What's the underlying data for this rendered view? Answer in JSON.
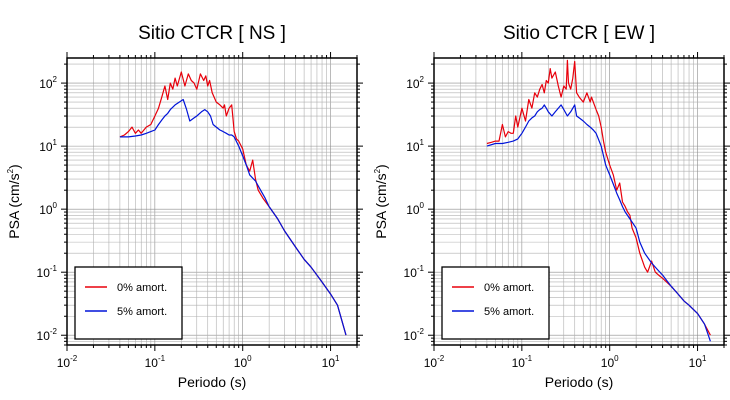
{
  "chart_data": [
    {
      "type": "line",
      "title": "Sitio CTCR [ NS ]",
      "xlabel": "Periodo (s)",
      "ylabel_main": "PSA (cm/s",
      "ylabel_sup": "2",
      "ylabel_close": ")",
      "xscale": "log",
      "yscale": "log",
      "xlim": [
        0.01,
        20
      ],
      "ylim": [
        0.007,
        250
      ],
      "grid": true,
      "legend_position": "bottom-left",
      "x_tick_labels": [
        {
          "base": "10",
          "exp": "-2",
          "value": 0.01
        },
        {
          "base": "10",
          "exp": "-1",
          "value": 0.1
        },
        {
          "base": "10",
          "exp": "0",
          "value": 1
        },
        {
          "base": "10",
          "exp": "1",
          "value": 10
        }
      ],
      "y_tick_labels": [
        {
          "base": "10",
          "exp": "-2",
          "value": 0.01
        },
        {
          "base": "10",
          "exp": "-1",
          "value": 0.1
        },
        {
          "base": "10",
          "exp": "0",
          "value": 1
        },
        {
          "base": "10",
          "exp": "1",
          "value": 10
        },
        {
          "base": "10",
          "exp": "2",
          "value": 100
        }
      ],
      "series": [
        {
          "name": "0% amort.",
          "color": "#e8000b",
          "points": [
            [
              0.04,
              14
            ],
            [
              0.045,
              15
            ],
            [
              0.05,
              17
            ],
            [
              0.055,
              20
            ],
            [
              0.06,
              16
            ],
            [
              0.065,
              18
            ],
            [
              0.07,
              16
            ],
            [
              0.075,
              18
            ],
            [
              0.08,
              20
            ],
            [
              0.09,
              22
            ],
            [
              0.1,
              30
            ],
            [
              0.11,
              40
            ],
            [
              0.12,
              60
            ],
            [
              0.13,
              90
            ],
            [
              0.14,
              55
            ],
            [
              0.15,
              100
            ],
            [
              0.16,
              80
            ],
            [
              0.17,
              120
            ],
            [
              0.18,
              90
            ],
            [
              0.2,
              150
            ],
            [
              0.22,
              90
            ],
            [
              0.24,
              140
            ],
            [
              0.26,
              110
            ],
            [
              0.28,
              100
            ],
            [
              0.3,
              80
            ],
            [
              0.33,
              140
            ],
            [
              0.36,
              110
            ],
            [
              0.38,
              130
            ],
            [
              0.4,
              90
            ],
            [
              0.42,
              110
            ],
            [
              0.45,
              70
            ],
            [
              0.5,
              50
            ],
            [
              0.55,
              45
            ],
            [
              0.6,
              40
            ],
            [
              0.62,
              45
            ],
            [
              0.65,
              30
            ],
            [
              0.7,
              40
            ],
            [
              0.75,
              45
            ],
            [
              0.8,
              17
            ],
            [
              0.85,
              13
            ],
            [
              0.9,
              12
            ],
            [
              1.0,
              9
            ],
            [
              1.1,
              5
            ],
            [
              1.2,
              4
            ],
            [
              1.3,
              6
            ],
            [
              1.4,
              3
            ],
            [
              1.5,
              2
            ],
            [
              1.7,
              1.5
            ],
            [
              2,
              1.1
            ],
            [
              2.5,
              0.7
            ],
            [
              3,
              0.45
            ],
            [
              4,
              0.25
            ],
            [
              5,
              0.16
            ],
            [
              6,
              0.12
            ],
            [
              8,
              0.07
            ],
            [
              10,
              0.045
            ],
            [
              12,
              0.03
            ],
            [
              15,
              0.01
            ]
          ]
        },
        {
          "name": "5% amort.",
          "color": "#0014d9",
          "points": [
            [
              0.04,
              14
            ],
            [
              0.05,
              14
            ],
            [
              0.06,
              14.5
            ],
            [
              0.07,
              15
            ],
            [
              0.08,
              16
            ],
            [
              0.09,
              17
            ],
            [
              0.1,
              18
            ],
            [
              0.11,
              22
            ],
            [
              0.12,
              26
            ],
            [
              0.13,
              30
            ],
            [
              0.14,
              33
            ],
            [
              0.15,
              38
            ],
            [
              0.17,
              45
            ],
            [
              0.19,
              50
            ],
            [
              0.21,
              55
            ],
            [
              0.23,
              38
            ],
            [
              0.25,
              25
            ],
            [
              0.28,
              28
            ],
            [
              0.3,
              30
            ],
            [
              0.34,
              35
            ],
            [
              0.37,
              38
            ],
            [
              0.4,
              35
            ],
            [
              0.43,
              30
            ],
            [
              0.46,
              22
            ],
            [
              0.5,
              20
            ],
            [
              0.55,
              18
            ],
            [
              0.6,
              17
            ],
            [
              0.65,
              16
            ],
            [
              0.7,
              15
            ],
            [
              0.75,
              15
            ],
            [
              0.8,
              14
            ],
            [
              0.9,
              10
            ],
            [
              1.0,
              7
            ],
            [
              1.1,
              5
            ],
            [
              1.2,
              3.5
            ],
            [
              1.4,
              2.8
            ],
            [
              1.6,
              2
            ],
            [
              1.8,
              1.5
            ],
            [
              2,
              1.1
            ],
            [
              2.5,
              0.7
            ],
            [
              3,
              0.45
            ],
            [
              4,
              0.25
            ],
            [
              5,
              0.16
            ],
            [
              6,
              0.12
            ],
            [
              8,
              0.07
            ],
            [
              10,
              0.045
            ],
            [
              12,
              0.03
            ],
            [
              15,
              0.01
            ]
          ]
        }
      ]
    },
    {
      "type": "line",
      "title": "Sitio CTCR [ EW ]",
      "xlabel": "Periodo (s)",
      "ylabel_main": "PSA (cm/s",
      "ylabel_sup": "2",
      "ylabel_close": ")",
      "xscale": "log",
      "yscale": "log",
      "xlim": [
        0.01,
        20
      ],
      "ylim": [
        0.007,
        250
      ],
      "grid": true,
      "legend_position": "bottom-left",
      "x_tick_labels": [
        {
          "base": "10",
          "exp": "-2",
          "value": 0.01
        },
        {
          "base": "10",
          "exp": "-1",
          "value": 0.1
        },
        {
          "base": "10",
          "exp": "0",
          "value": 1
        },
        {
          "base": "10",
          "exp": "1",
          "value": 10
        }
      ],
      "y_tick_labels": [
        {
          "base": "10",
          "exp": "-2",
          "value": 0.01
        },
        {
          "base": "10",
          "exp": "-1",
          "value": 0.1
        },
        {
          "base": "10",
          "exp": "0",
          "value": 1
        },
        {
          "base": "10",
          "exp": "1",
          "value": 10
        },
        {
          "base": "10",
          "exp": "2",
          "value": 100
        }
      ],
      "series": [
        {
          "name": "0% amort.",
          "color": "#e8000b",
          "points": [
            [
              0.04,
              11
            ],
            [
              0.045,
              11.5
            ],
            [
              0.05,
              12
            ],
            [
              0.055,
              12
            ],
            [
              0.06,
              22
            ],
            [
              0.065,
              14
            ],
            [
              0.07,
              17
            ],
            [
              0.075,
              16
            ],
            [
              0.08,
              16
            ],
            [
              0.085,
              30
            ],
            [
              0.09,
              20
            ],
            [
              0.1,
              40
            ],
            [
              0.11,
              25
            ],
            [
              0.12,
              55
            ],
            [
              0.13,
              40
            ],
            [
              0.14,
              70
            ],
            [
              0.15,
              60
            ],
            [
              0.16,
              80
            ],
            [
              0.17,
              95
            ],
            [
              0.18,
              70
            ],
            [
              0.19,
              110
            ],
            [
              0.2,
              100
            ],
            [
              0.21,
              170
            ],
            [
              0.22,
              120
            ],
            [
              0.24,
              150
            ],
            [
              0.26,
              90
            ],
            [
              0.28,
              60
            ],
            [
              0.3,
              90
            ],
            [
              0.32,
              80
            ],
            [
              0.33,
              230
            ],
            [
              0.34,
              100
            ],
            [
              0.36,
              80
            ],
            [
              0.38,
              120
            ],
            [
              0.4,
              220
            ],
            [
              0.42,
              70
            ],
            [
              0.45,
              60
            ],
            [
              0.5,
              50
            ],
            [
              0.55,
              70
            ],
            [
              0.6,
              50
            ],
            [
              0.62,
              60
            ],
            [
              0.65,
              50
            ],
            [
              0.7,
              38
            ],
            [
              0.75,
              30
            ],
            [
              0.8,
              20
            ],
            [
              0.85,
              12
            ],
            [
              0.9,
              8
            ],
            [
              1.0,
              5
            ],
            [
              1.1,
              3.5
            ],
            [
              1.2,
              2
            ],
            [
              1.3,
              2.6
            ],
            [
              1.4,
              1.3
            ],
            [
              1.5,
              1.1
            ],
            [
              1.6,
              0.9
            ],
            [
              1.7,
              0.8
            ],
            [
              1.8,
              0.5
            ],
            [
              2,
              0.35
            ],
            [
              2.2,
              0.2
            ],
            [
              2.5,
              0.12
            ],
            [
              2.7,
              0.1
            ],
            [
              3,
              0.15
            ],
            [
              3.3,
              0.1
            ],
            [
              3.6,
              0.09
            ],
            [
              4,
              0.08
            ],
            [
              5,
              0.06
            ],
            [
              6,
              0.045
            ],
            [
              7,
              0.035
            ],
            [
              8,
              0.03
            ],
            [
              10,
              0.022
            ],
            [
              12,
              0.015
            ],
            [
              14,
              0.01
            ]
          ]
        },
        {
          "name": "5% amort.",
          "color": "#0014d9",
          "points": [
            [
              0.04,
              10
            ],
            [
              0.05,
              11
            ],
            [
              0.06,
              11
            ],
            [
              0.07,
              11.5
            ],
            [
              0.08,
              12
            ],
            [
              0.09,
              13
            ],
            [
              0.1,
              16
            ],
            [
              0.11,
              20
            ],
            [
              0.12,
              25
            ],
            [
              0.13,
              28
            ],
            [
              0.14,
              30
            ],
            [
              0.15,
              35
            ],
            [
              0.16,
              38
            ],
            [
              0.17,
              40
            ],
            [
              0.18,
              45
            ],
            [
              0.19,
              40
            ],
            [
              0.2,
              35
            ],
            [
              0.22,
              30
            ],
            [
              0.24,
              35
            ],
            [
              0.26,
              40
            ],
            [
              0.28,
              45
            ],
            [
              0.3,
              38
            ],
            [
              0.33,
              30
            ],
            [
              0.36,
              35
            ],
            [
              0.4,
              45
            ],
            [
              0.42,
              30
            ],
            [
              0.45,
              28
            ],
            [
              0.5,
              25
            ],
            [
              0.55,
              22
            ],
            [
              0.6,
              20
            ],
            [
              0.65,
              18
            ],
            [
              0.7,
              16
            ],
            [
              0.8,
              10
            ],
            [
              0.9,
              5
            ],
            [
              1.0,
              3.5
            ],
            [
              1.1,
              2.5
            ],
            [
              1.2,
              1.8
            ],
            [
              1.3,
              1.4
            ],
            [
              1.4,
              1.1
            ],
            [
              1.5,
              0.9
            ],
            [
              1.7,
              0.7
            ],
            [
              2,
              0.5
            ],
            [
              2.2,
              0.3
            ],
            [
              2.5,
              0.2
            ],
            [
              3,
              0.14
            ],
            [
              3.5,
              0.11
            ],
            [
              4,
              0.09
            ],
            [
              5,
              0.06
            ],
            [
              6,
              0.045
            ],
            [
              7,
              0.035
            ],
            [
              8,
              0.03
            ],
            [
              10,
              0.022
            ],
            [
              12,
              0.015
            ],
            [
              14,
              0.008
            ]
          ]
        }
      ]
    }
  ]
}
